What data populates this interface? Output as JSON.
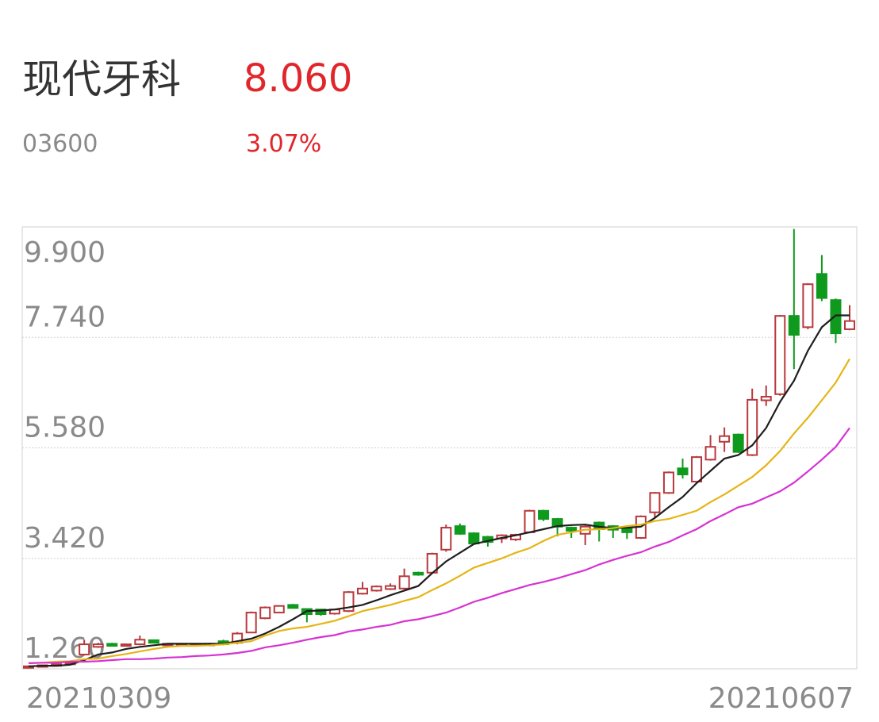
{
  "header": {
    "name": "现代牙科",
    "price": "8.060",
    "code": "03600",
    "change": "3.07%"
  },
  "chart_data": {
    "type": "candlestick",
    "categories": [
      "20210309",
      null,
      null,
      null,
      null,
      null,
      null,
      null,
      null,
      null,
      null,
      null,
      null,
      null,
      null,
      null,
      null,
      null,
      null,
      null,
      null,
      null,
      null,
      null,
      null,
      null,
      null,
      null,
      null,
      null,
      null,
      null,
      null,
      null,
      null,
      null,
      null,
      null,
      null,
      null,
      null,
      null,
      null,
      null,
      null,
      null,
      null,
      null,
      null,
      null,
      null,
      null,
      null,
      null,
      null,
      null,
      null,
      null,
      null,
      "20210607"
    ],
    "open": [
      1.3,
      1.32,
      1.34,
      1.37,
      1.54,
      1.69,
      1.75,
      1.72,
      1.74,
      1.82,
      1.72,
      1.72,
      1.72,
      1.72,
      1.8,
      1.77,
      1.97,
      2.25,
      2.36,
      2.51,
      2.43,
      2.42,
      2.34,
      2.39,
      2.73,
      2.79,
      2.82,
      2.83,
      3.14,
      3.14,
      3.59,
      4.05,
      3.91,
      3.84,
      3.81,
      3.79,
      3.93,
      4.35,
      4.19,
      4.02,
      3.9,
      4.12,
      4.05,
      4.01,
      3.82,
      4.32,
      4.7,
      5.18,
      4.92,
      5.35,
      5.7,
      5.84,
      5.44,
      6.51,
      6.63,
      8.16,
      7.94,
      8.98,
      8.47,
      7.9
    ],
    "high": [
      1.32,
      1.34,
      1.36,
      1.39,
      1.83,
      1.77,
      1.77,
      1.75,
      1.91,
      1.83,
      1.76,
      1.76,
      1.76,
      1.77,
      1.83,
      1.98,
      2.38,
      2.48,
      2.5,
      2.53,
      2.44,
      2.43,
      2.43,
      2.78,
      2.96,
      2.89,
      2.93,
      3.22,
      3.16,
      3.53,
      4.08,
      4.1,
      3.93,
      3.86,
      3.89,
      3.9,
      4.37,
      4.37,
      4.21,
      4.04,
      4.06,
      4.14,
      4.07,
      4.03,
      4.26,
      4.72,
      5.12,
      5.37,
      5.42,
      5.83,
      5.98,
      5.86,
      6.74,
      6.8,
      8.18,
      9.86,
      8.8,
      9.35,
      8.5,
      8.37
    ],
    "low": [
      1.29,
      1.31,
      1.33,
      1.36,
      1.52,
      1.67,
      1.7,
      1.71,
      1.72,
      1.76,
      1.71,
      1.71,
      1.71,
      1.71,
      1.72,
      1.74,
      1.96,
      2.23,
      2.35,
      2.44,
      2.17,
      2.3,
      2.32,
      2.37,
      2.71,
      2.77,
      2.8,
      2.81,
      3.08,
      3.12,
      3.55,
      3.88,
      3.69,
      3.65,
      3.72,
      3.76,
      3.91,
      4.15,
      3.85,
      3.82,
      3.68,
      3.75,
      3.82,
      3.8,
      3.8,
      4.2,
      4.68,
      4.98,
      4.9,
      5.33,
      5.5,
      5.48,
      5.42,
      6.4,
      6.6,
      7.12,
      7.9,
      8.45,
      7.63,
      7.88
    ],
    "close": [
      1.31,
      1.33,
      1.35,
      1.38,
      1.74,
      1.74,
      1.71,
      1.74,
      1.83,
      1.77,
      1.75,
      1.75,
      1.75,
      1.75,
      1.74,
      1.95,
      2.36,
      2.46,
      2.49,
      2.45,
      2.33,
      2.33,
      2.42,
      2.76,
      2.83,
      2.87,
      2.88,
      3.07,
      3.1,
      3.51,
      4.02,
      3.9,
      3.71,
      3.74,
      3.87,
      3.88,
      4.35,
      4.19,
      4.04,
      3.96,
      4.04,
      3.99,
      3.98,
      3.93,
      4.24,
      4.7,
      5.1,
      5.06,
      5.4,
      5.6,
      5.81,
      5.5,
      6.52,
      6.58,
      8.16,
      7.79,
      8.78,
      8.51,
      7.82,
      8.06
    ],
    "up_color": "#b8383c",
    "down_color": "#0f9a1e",
    "lines": [
      {
        "color": "#1e1e1e",
        "values": [
          1.31,
          1.32,
          1.32,
          1.34,
          1.43,
          1.54,
          1.58,
          1.65,
          1.69,
          1.72,
          1.75,
          1.75,
          1.75,
          1.75,
          1.75,
          1.8,
          1.85,
          1.95,
          2.08,
          2.23,
          2.39,
          2.4,
          2.42,
          2.46,
          2.51,
          2.6,
          2.7,
          2.79,
          2.88,
          3.13,
          3.36,
          3.53,
          3.7,
          3.76,
          3.82,
          3.87,
          3.93,
          3.99,
          4.05,
          4.07,
          4.08,
          4.04,
          4.01,
          4.02,
          4.04,
          4.21,
          4.42,
          4.62,
          4.89,
          5.13,
          5.37,
          5.44,
          5.63,
          5.97,
          6.48,
          6.89,
          7.48,
          7.94,
          8.17,
          8.17
        ]
      },
      {
        "color": "#e6b414",
        "values": [
          1.37,
          1.38,
          1.4,
          1.41,
          1.45,
          1.46,
          1.51,
          1.55,
          1.6,
          1.65,
          1.69,
          1.71,
          1.71,
          1.72,
          1.74,
          1.77,
          1.8,
          1.91,
          2.0,
          2.05,
          2.08,
          2.14,
          2.2,
          2.29,
          2.39,
          2.45,
          2.51,
          2.59,
          2.66,
          2.8,
          2.93,
          3.08,
          3.24,
          3.33,
          3.42,
          3.53,
          3.62,
          3.76,
          3.88,
          3.93,
          3.98,
          3.99,
          4.01,
          4.05,
          4.08,
          4.15,
          4.19,
          4.27,
          4.35,
          4.52,
          4.67,
          4.84,
          5.01,
          5.24,
          5.52,
          5.86,
          6.17,
          6.51,
          6.86,
          7.32
        ]
      },
      {
        "color": "#d632d2",
        "values": [
          1.37,
          1.38,
          1.38,
          1.4,
          1.4,
          1.41,
          1.43,
          1.45,
          1.45,
          1.46,
          1.48,
          1.49,
          1.51,
          1.52,
          1.54,
          1.57,
          1.61,
          1.68,
          1.72,
          1.77,
          1.83,
          1.88,
          1.92,
          1.99,
          2.03,
          2.08,
          2.12,
          2.19,
          2.23,
          2.29,
          2.36,
          2.46,
          2.57,
          2.65,
          2.74,
          2.82,
          2.9,
          2.96,
          3.03,
          3.11,
          3.19,
          3.3,
          3.39,
          3.47,
          3.54,
          3.65,
          3.74,
          3.87,
          3.99,
          4.15,
          4.28,
          4.42,
          4.49,
          4.61,
          4.73,
          4.9,
          5.12,
          5.35,
          5.6,
          5.97
        ]
      }
    ],
    "ylim": [
      1.26,
      9.9
    ],
    "yticks": [
      {
        "value": 1.26,
        "label": "1.260"
      },
      {
        "value": 3.42,
        "label": "3.420"
      },
      {
        "value": 5.58,
        "label": "5.580"
      },
      {
        "value": 7.74,
        "label": "7.740"
      },
      {
        "value": 9.9,
        "label": "9.900"
      }
    ],
    "grid": true
  }
}
